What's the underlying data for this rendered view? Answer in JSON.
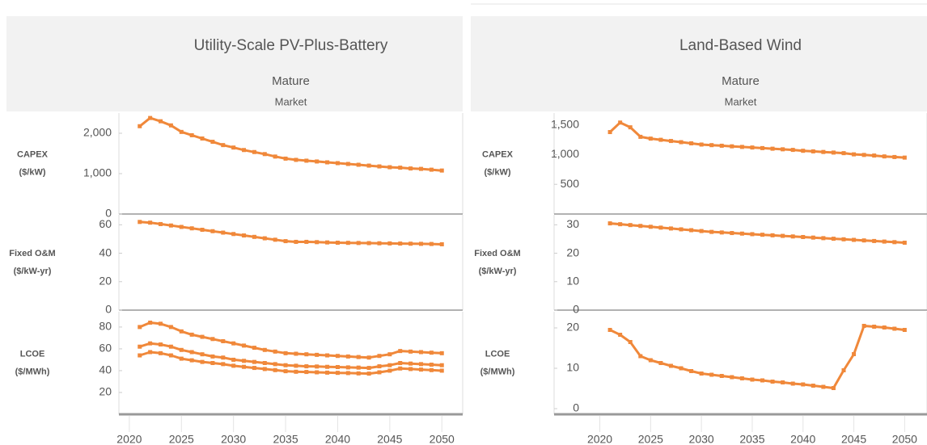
{
  "headers": [
    {
      "title": "Utility-Scale PV-Plus-Battery",
      "subtitle": "Mature",
      "label": "Market"
    },
    {
      "title": "Land-Based Wind",
      "subtitle": "Mature",
      "label": "Market"
    }
  ],
  "chart_data": [
    {
      "type": "line",
      "label": "CAPEX",
      "unit": "($/kW)",
      "x": [
        2021,
        2022,
        2023,
        2024,
        2025,
        2026,
        2027,
        2028,
        2029,
        2030,
        2031,
        2032,
        2033,
        2034,
        2035,
        2036,
        2037,
        2038,
        2039,
        2040,
        2041,
        2042,
        2043,
        2044,
        2045,
        2046,
        2047,
        2048,
        2049,
        2050
      ],
      "series": [
        {
          "color": "#f0883a",
          "values": [
            2175,
            2378,
            2297,
            2195,
            2033,
            1951,
            1870,
            1789,
            1707,
            1646,
            1585,
            1535,
            1484,
            1423,
            1372,
            1341,
            1321,
            1301,
            1280,
            1260,
            1240,
            1220,
            1199,
            1179,
            1159,
            1148,
            1128,
            1118,
            1098,
            1077
          ]
        }
      ],
      "xlim": [
        2019,
        2052
      ],
      "ylim": [
        0,
        2500
      ],
      "yticks": [
        0,
        {
          "value": 1000,
          "label": "1,000"
        },
        {
          "value": 2000,
          "label": "2,000"
        }
      ]
    },
    {
      "type": "line",
      "label": "Fixed O&M",
      "unit": "($/kW-yr)",
      "x": [
        2021,
        2022,
        2023,
        2024,
        2025,
        2026,
        2027,
        2028,
        2029,
        2030,
        2031,
        2032,
        2033,
        2034,
        2035,
        2036,
        2037,
        2038,
        2039,
        2040,
        2041,
        2042,
        2043,
        2044,
        2045,
        2046,
        2047,
        2048,
        2049,
        2050
      ],
      "series": [
        {
          "color": "#f0883a",
          "values": [
            62,
            61.5,
            60.5,
            59.5,
            58.5,
            57.5,
            56.5,
            55.5,
            54.5,
            53.5,
            52.5,
            51.5,
            50.5,
            49.5,
            48.5,
            48,
            48,
            47.8,
            47.6,
            47.4,
            47.3,
            47.2,
            47.1,
            47,
            46.9,
            46.8,
            46.7,
            46.6,
            46.5,
            46.3
          ]
        }
      ],
      "xlim": [
        2019,
        2052
      ],
      "ylim": [
        0,
        67
      ],
      "yticks": [
        0,
        20,
        40,
        60
      ]
    },
    {
      "type": "line",
      "label": "LCOE",
      "unit": "($/MWh)",
      "x": [
        2021,
        2022,
        2023,
        2024,
        2025,
        2026,
        2027,
        2028,
        2029,
        2030,
        2031,
        2032,
        2033,
        2034,
        2035,
        2036,
        2037,
        2038,
        2039,
        2040,
        2041,
        2042,
        2043,
        2044,
        2045,
        2046,
        2047,
        2048,
        2049,
        2050
      ],
      "series": [
        {
          "color": "#f0883a",
          "values": [
            80,
            84,
            83,
            80,
            76,
            73,
            71,
            69,
            67,
            65,
            63,
            61,
            59,
            57.5,
            56,
            55.5,
            55,
            54.5,
            54,
            53.5,
            53,
            52.5,
            52,
            53.5,
            55,
            58,
            57.5,
            57,
            56.5,
            56
          ]
        },
        {
          "color": "#f0883a",
          "values": [
            62,
            65,
            64,
            62,
            59,
            57,
            55,
            53,
            52,
            50,
            49,
            48,
            47,
            46,
            45,
            44.5,
            44,
            43.8,
            43.5,
            43.3,
            43,
            42.8,
            42.5,
            44,
            45,
            47,
            46.5,
            46,
            45.5,
            45
          ]
        },
        {
          "color": "#f0883a",
          "values": [
            54,
            57,
            56,
            54,
            51,
            49.5,
            48,
            47,
            46,
            44.5,
            43.5,
            42.5,
            41.5,
            40.5,
            39.5,
            39,
            38.8,
            38.5,
            38.2,
            38,
            37.8,
            37.5,
            37.3,
            38.5,
            40,
            42,
            41.5,
            41,
            40.5,
            40
          ]
        }
      ],
      "xlim": [
        2019,
        2052
      ],
      "ylim": [
        0,
        94
      ],
      "yticks": [
        20,
        40,
        60,
        80
      ],
      "xticks": [
        2020,
        2025,
        2030,
        2035,
        2040,
        2045,
        2050
      ]
    },
    {
      "type": "line",
      "label": "CAPEX",
      "unit": "($/kW)",
      "x": [
        2021,
        2022,
        2023,
        2024,
        2025,
        2026,
        2027,
        2028,
        2029,
        2030,
        2031,
        2032,
        2033,
        2034,
        2035,
        2036,
        2037,
        2038,
        2039,
        2040,
        2041,
        2042,
        2043,
        2044,
        2045,
        2046,
        2047,
        2048,
        2049,
        2050
      ],
      "series": [
        {
          "color": "#f0883a",
          "values": [
            1380,
            1540,
            1460,
            1300,
            1270,
            1250,
            1230,
            1210,
            1190,
            1170,
            1160,
            1150,
            1140,
            1130,
            1120,
            1110,
            1100,
            1090,
            1080,
            1065,
            1055,
            1045,
            1035,
            1025,
            1005,
            995,
            985,
            970,
            960,
            950
          ]
        }
      ],
      "xlim": [
        2015.5,
        2052.2
      ],
      "ylim": [
        0,
        1700
      ],
      "yticks": [
        500,
        {
          "value": 1000,
          "label": "1,000"
        },
        {
          "value": 1500,
          "label": "1,500"
        }
      ]
    },
    {
      "type": "line",
      "label": "Fixed O&M",
      "unit": "($/kW-yr)",
      "x": [
        2021,
        2022,
        2023,
        2024,
        2025,
        2026,
        2027,
        2028,
        2029,
        2030,
        2031,
        2032,
        2033,
        2034,
        2035,
        2036,
        2037,
        2038,
        2039,
        2040,
        2041,
        2042,
        2043,
        2044,
        2045,
        2046,
        2047,
        2048,
        2049,
        2050
      ],
      "series": [
        {
          "color": "#f0883a",
          "values": [
            30.5,
            30.2,
            29.9,
            29.6,
            29.3,
            29,
            28.7,
            28.4,
            28.1,
            27.8,
            27.5,
            27.3,
            27.1,
            26.9,
            26.7,
            26.5,
            26.3,
            26.1,
            25.9,
            25.7,
            25.5,
            25.3,
            25.1,
            24.9,
            24.7,
            24.5,
            24.3,
            24.1,
            23.9,
            23.7
          ]
        }
      ],
      "xlim": [
        2015.5,
        2052.2
      ],
      "ylim": [
        0,
        33.5
      ],
      "yticks": [
        0,
        10,
        20,
        30
      ]
    },
    {
      "type": "line",
      "label": "LCOE",
      "unit": "($/MWh)",
      "x": [
        2021,
        2022,
        2023,
        2024,
        2025,
        2026,
        2027,
        2028,
        2029,
        2030,
        2031,
        2032,
        2033,
        2034,
        2035,
        2036,
        2037,
        2038,
        2039,
        2040,
        2041,
        2042,
        2043,
        2044,
        2045,
        2046,
        2047,
        2048,
        2049,
        2050
      ],
      "series": [
        {
          "color": "#f0883a",
          "values": [
            19.5,
            18.3,
            16.5,
            13,
            12,
            11.3,
            10.6,
            10,
            9.3,
            8.7,
            8.4,
            8.1,
            7.8,
            7.5,
            7.2,
            7,
            6.7,
            6.5,
            6.2,
            6,
            5.7,
            5.4,
            5.1,
            9.5,
            13.5,
            20.5,
            20.3,
            20.1,
            19.8,
            19.5
          ]
        }
      ],
      "xlim": [
        2015.5,
        2052.2
      ],
      "ylim": [
        -1.4,
        24
      ],
      "yticks": [
        0,
        10,
        20
      ],
      "xticks": [
        2020,
        2025,
        2030,
        2035,
        2040,
        2045,
        2050
      ]
    }
  ]
}
